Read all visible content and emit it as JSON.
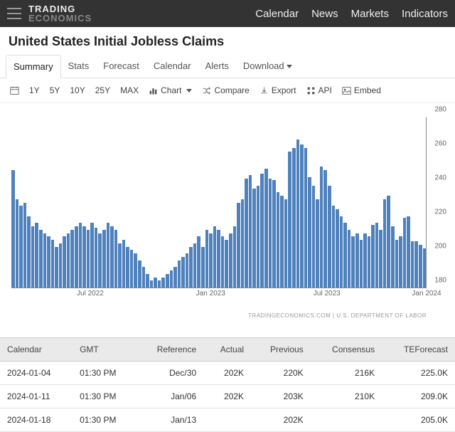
{
  "brand": {
    "line1": "TRADING",
    "line2": "ECONOMICS"
  },
  "topnav": [
    "Calendar",
    "News",
    "Markets",
    "Indicators"
  ],
  "page_title": "United States Initial Jobless Claims",
  "tabs": [
    "Summary",
    "Stats",
    "Forecast",
    "Calendar",
    "Alerts",
    "Download"
  ],
  "active_tab": 0,
  "toolbar": {
    "ranges": [
      "1Y",
      "5Y",
      "10Y",
      "25Y",
      "MAX"
    ],
    "chart_label": "Chart",
    "compare_label": "Compare",
    "export_label": "Export",
    "api_label": "API",
    "embed_label": "Embed"
  },
  "chart": {
    "type": "bar",
    "bar_color": "#4f81bd",
    "background": "#ffffff",
    "axis_color": "#888888",
    "label_color": "#666666",
    "label_fontsize": 10,
    "ymin": 180,
    "ymax": 280,
    "yticks": [
      180,
      200,
      220,
      240,
      260,
      280
    ],
    "xticks": [
      {
        "pos": 0.19,
        "label": "Jul 2022"
      },
      {
        "pos": 0.48,
        "label": "Jan 2023"
      },
      {
        "pos": 0.76,
        "label": "Jul 2023"
      },
      {
        "pos": 1.0,
        "label": "Jan 2024"
      }
    ],
    "values": [
      249,
      232,
      228,
      230,
      222,
      216,
      218,
      214,
      212,
      210,
      208,
      204,
      206,
      210,
      212,
      214,
      216,
      218,
      216,
      214,
      218,
      215,
      212,
      214,
      218,
      216,
      214,
      206,
      208,
      204,
      202,
      200,
      196,
      192,
      188,
      184,
      186,
      184,
      186,
      188,
      190,
      192,
      196,
      198,
      200,
      204,
      206,
      210,
      204,
      214,
      212,
      216,
      214,
      210,
      208,
      212,
      216,
      230,
      232,
      244,
      246,
      238,
      240,
      247,
      250,
      244,
      243,
      236,
      234,
      232,
      260,
      262,
      267,
      264,
      262,
      245,
      240,
      232,
      251,
      249,
      240,
      228,
      226,
      222,
      218,
      214,
      210,
      212,
      208,
      212,
      210,
      217,
      218,
      214,
      232,
      234,
      216,
      208,
      210,
      221,
      222,
      207,
      207,
      205,
      203
    ],
    "source_note": "TRADINGECONOMICS.COM  |  U.S. DEPARTMENT OF LABOR"
  },
  "table": {
    "columns": [
      "Calendar",
      "GMT",
      "Reference",
      "Actual",
      "Previous",
      "Consensus",
      "TEForecast"
    ],
    "align": [
      "l",
      "l",
      "r",
      "r",
      "r",
      "r",
      "r"
    ],
    "rows": [
      [
        "2024-01-04",
        "01:30 PM",
        "Dec/30",
        "202K",
        "220K",
        "216K",
        "225.0K"
      ],
      [
        "2024-01-11",
        "01:30 PM",
        "Jan/06",
        "202K",
        "203K",
        "210K",
        "209.0K"
      ],
      [
        "2024-01-18",
        "01:30 PM",
        "Jan/13",
        "",
        "202K",
        "",
        "205.0K"
      ]
    ]
  }
}
